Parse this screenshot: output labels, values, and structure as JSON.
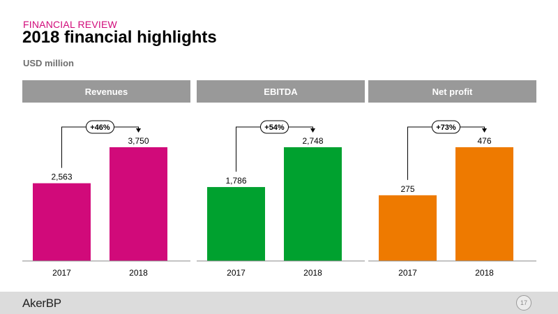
{
  "header": {
    "kicker": "FINANCIAL REVIEW",
    "title": "2018 financial highlights",
    "units": "USD million"
  },
  "chart_data": [
    {
      "type": "bar",
      "title": "Revenues",
      "categories": [
        "2017",
        "2018"
      ],
      "values": [
        2563,
        3750
      ],
      "value_labels": [
        "2,563",
        "3,750"
      ],
      "change_label": "+46%",
      "color": "#d10a7a",
      "grid": false
    },
    {
      "type": "bar",
      "title": "EBITDA",
      "categories": [
        "2017",
        "2018"
      ],
      "values": [
        1786,
        2748
      ],
      "value_labels": [
        "1,786",
        "2,748"
      ],
      "change_label": "+54%",
      "color": "#00a12f",
      "grid": false
    },
    {
      "type": "bar",
      "title": "Net profit",
      "categories": [
        "2017",
        "2018"
      ],
      "values": [
        275,
        476
      ],
      "value_labels": [
        "275",
        "476"
      ],
      "change_label": "+73%",
      "color": "#ee7a00",
      "grid": false
    }
  ],
  "footer": {
    "logo": "AkerBP",
    "page_number": "17"
  }
}
